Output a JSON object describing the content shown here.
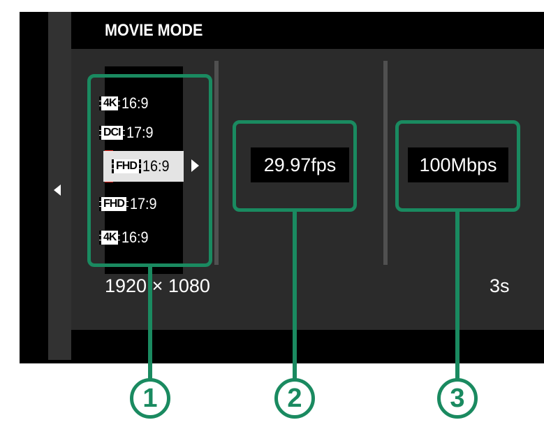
{
  "screen": {
    "title": "MOVIE MODE",
    "menu_items": [
      {
        "resolution_icon": "4K",
        "ratio": "16:9"
      },
      {
        "resolution_icon": "DCI",
        "ratio": "17:9"
      },
      {
        "resolution_icon": "FHD",
        "ratio": "16:9",
        "selected": true
      },
      {
        "resolution_icon": "FHD",
        "ratio": "17:9"
      },
      {
        "resolution_icon": "4K",
        "ratio": "16:9"
      }
    ],
    "frame_rate": "29.97fps",
    "bit_rate": "100Mbps",
    "resolution_info": "1920 × 1080",
    "duration_info": "3s",
    "icons": {
      "back": "left-triangle-icon",
      "next": "right-triangle-icon"
    }
  },
  "callouts": [
    {
      "number": "1"
    },
    {
      "number": "2"
    },
    {
      "number": "3"
    }
  ],
  "colors": {
    "callout": "#1a8a60",
    "selection": "#e2231a",
    "screen_bg": "#000000",
    "panel_bg": "#2b2b2b"
  }
}
